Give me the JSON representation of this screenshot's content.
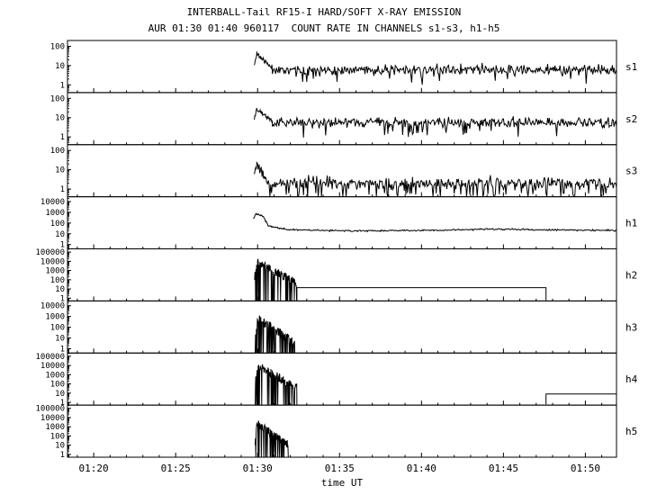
{
  "chart_data": {
    "type": "line",
    "title": "INTERBALL-Tail RF15-I HARD/SOFT X-RAY EMISSION",
    "subtitle": "AUR 01:30 01:40 960117  COUNT RATE IN CHANNELS s1-s3, h1-h5",
    "xlabel": "time UT",
    "line_color": "#000000",
    "background": "#ffffff",
    "x_axis": {
      "unit": "minutes UT",
      "min": 78.4,
      "max": 111.9,
      "minor_step": 1,
      "major_ticks": [
        {
          "t": 80,
          "label": "01:20"
        },
        {
          "t": 85,
          "label": "01:25"
        },
        {
          "t": 90,
          "label": "01:30"
        },
        {
          "t": 95,
          "label": "01:35"
        },
        {
          "t": 100,
          "label": "01:40"
        },
        {
          "t": 105,
          "label": "01:45"
        },
        {
          "t": 110,
          "label": "01:50"
        }
      ]
    },
    "panels": [
      {
        "label": "s1",
        "seed": 11,
        "log_min": -0.4,
        "log_max": 2.3,
        "yticks": [
          100,
          10,
          1
        ],
        "paths": [
          [
            {
              "type": "decay",
              "t0": 89.8,
              "t1": 89.95,
              "from": 10,
              "to": 42,
              "spread": 0.05
            },
            {
              "type": "decay",
              "t0": 89.95,
              "t1": 90.9,
              "from": 42,
              "to": 7,
              "spread": 0.07
            },
            {
              "type": "noise",
              "t0": 90.9,
              "t1": 111.9,
              "level": 6,
              "spread": 0.13,
              "dip_prob": 0.04,
              "dip_level": 1.6
            }
          ]
        ]
      },
      {
        "label": "s2",
        "seed": 22,
        "log_min": -0.4,
        "log_max": 2.3,
        "yticks": [
          100,
          10,
          1
        ],
        "paths": [
          [
            {
              "type": "decay",
              "t0": 89.8,
              "t1": 89.95,
              "from": 9,
              "to": 32,
              "spread": 0.05
            },
            {
              "type": "decay",
              "t0": 89.95,
              "t1": 90.9,
              "from": 32,
              "to": 6,
              "spread": 0.07
            },
            {
              "type": "noise",
              "t0": 90.9,
              "t1": 111.9,
              "level": 5.5,
              "spread": 0.13,
              "dip_prob": 0.05,
              "dip_level": 1.5
            }
          ]
        ]
      },
      {
        "label": "s3",
        "seed": 33,
        "log_min": -0.4,
        "log_max": 2.3,
        "yticks": [
          100,
          10,
          1
        ],
        "paths": [
          [
            {
              "type": "decay",
              "t0": 89.8,
              "t1": 89.95,
              "from": 6,
              "to": 18,
              "spread": 0.06
            },
            {
              "type": "decay",
              "t0": 89.95,
              "t1": 90.6,
              "from": 18,
              "to": 2.2,
              "spread": 0.1
            },
            {
              "type": "noise",
              "t0": 90.6,
              "t1": 111.9,
              "level": 2,
              "spread": 0.16,
              "dip_prob": 0.12,
              "dip_level": 0.45
            }
          ]
        ]
      },
      {
        "label": "h1",
        "seed": 44,
        "log_min": -0.4,
        "log_max": 4.45,
        "yticks": [
          10000,
          1000,
          100,
          10,
          1
        ],
        "paths": [
          [
            {
              "type": "decay",
              "t0": 89.75,
              "t1": 89.9,
              "from": 250,
              "to": 750,
              "spread": 0.04
            },
            {
              "type": "decay",
              "t0": 89.9,
              "t1": 90.35,
              "from": 750,
              "to": 420,
              "spread": 0.04
            },
            {
              "type": "decay",
              "t0": 90.35,
              "t1": 90.65,
              "from": 420,
              "to": 55,
              "spread": 0.05
            },
            {
              "type": "decay",
              "t0": 90.65,
              "t1": 91.8,
              "from": 55,
              "to": 24,
              "spread": 0.04
            },
            {
              "type": "noise",
              "t0": 91.8,
              "t1": 111.9,
              "spread": 0.035,
              "dip_prob": 0,
              "dip_level": 1,
              "levels": [
                [
                  91.8,
                  24
                ],
                [
                  96,
                  19
                ],
                [
                  101,
                  21
                ],
                [
                  104,
                  28
                ],
                [
                  108,
                  23
                ],
                [
                  111.9,
                  21
                ]
              ]
            }
          ]
        ]
      },
      {
        "label": "h2",
        "seed": 55,
        "log_min": -0.3,
        "log_max": 5.35,
        "yticks": [
          100000,
          10000,
          1000,
          100,
          10,
          1
        ],
        "paths": [
          [
            {
              "type": "burst",
              "t0": 89.8,
              "t1": 92.4,
              "peak": 25000,
              "drop_prob": 0.22,
              "scatter": 0.9
            },
            {
              "type": "flat",
              "t0": 92.4,
              "t1": 107.6,
              "level": 14,
              "end_drop": 0.6
            }
          ]
        ]
      },
      {
        "label": "h3",
        "seed": 66,
        "log_min": -0.4,
        "log_max": 4.45,
        "yticks": [
          10000,
          1000,
          100,
          10,
          1
        ],
        "paths": [
          [
            {
              "type": "burst",
              "t0": 89.85,
              "t1": 92.3,
              "peak": 1800,
              "drop_prob": 0.26,
              "scatter": 0.9
            }
          ]
        ]
      },
      {
        "label": "h4",
        "seed": 77,
        "log_min": -0.3,
        "log_max": 5.35,
        "yticks": [
          100000,
          10000,
          1000,
          100,
          10,
          1
        ],
        "paths": [
          [
            {
              "type": "burst",
              "t0": 89.85,
              "t1": 92.4,
              "peak": 25000,
              "drop_prob": 0.22,
              "scatter": 0.95
            }
          ],
          [
            {
              "type": "flat",
              "t0": 107.6,
              "t1": 111.9,
              "level": 8,
              "start_drop": 0.6
            }
          ]
        ]
      },
      {
        "label": "h5",
        "seed": 88,
        "log_min": -0.3,
        "log_max": 5.35,
        "yticks": [
          100000,
          10000,
          1000,
          100,
          10,
          1
        ],
        "paths": [
          [
            {
              "type": "burst",
              "t0": 89.85,
              "t1": 91.9,
              "peak": 6000,
              "drop_prob": 0.28,
              "scatter": 0.9
            }
          ]
        ]
      }
    ]
  }
}
